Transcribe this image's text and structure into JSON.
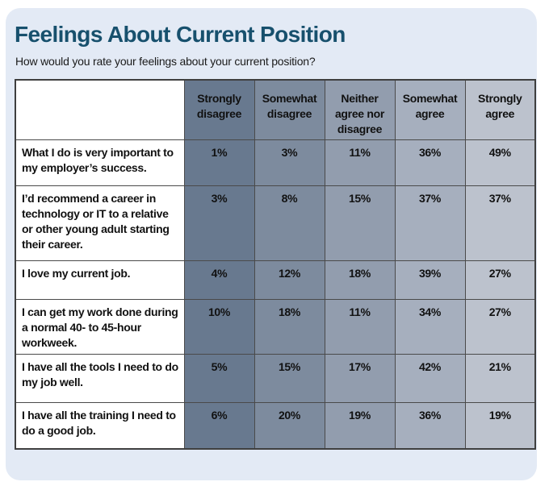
{
  "title": "Feelings About Current Position",
  "subtitle": "How would you rate your feelings about your current position?",
  "colors": {
    "card_background": "#e3eaf5",
    "title_text": "#17506d",
    "table_border": "#4a4a4a",
    "statement_background": "#ffffff",
    "cell_text": "#111111"
  },
  "chart_data": {
    "type": "table",
    "title": "Feelings About Current Position",
    "question": "How would you rate your feelings about your current position?",
    "columns": [
      "Strongly disagree",
      "Somewhat disagree",
      "Neither agree nor disagree",
      "Somewhat agree",
      "Strongly agree"
    ],
    "column_colors": [
      "#68798f",
      "#7d8b9e",
      "#929dae",
      "#a6afbe",
      "#bcc2cd"
    ],
    "rows": [
      {
        "statement": "What I do is very important to my employer’s success.",
        "values": [
          "1%",
          "3%",
          "11%",
          "36%",
          "49%"
        ]
      },
      {
        "statement": "I’d recommend a career in technology or IT to a relative or other young adult starting their career.",
        "values": [
          "3%",
          "8%",
          "15%",
          "37%",
          "37%"
        ]
      },
      {
        "statement": "I love my current job.",
        "values": [
          "4%",
          "12%",
          "18%",
          "39%",
          "27%"
        ]
      },
      {
        "statement": "I can get my work done during a normal 40- to 45-hour workweek.",
        "values": [
          "10%",
          "18%",
          "11%",
          "34%",
          "27%"
        ]
      },
      {
        "statement": "I have all the tools I need to do my job well.",
        "values": [
          "5%",
          "15%",
          "17%",
          "42%",
          "21%"
        ]
      },
      {
        "statement": "I have all the training I need to do a good job.",
        "values": [
          "6%",
          "20%",
          "19%",
          "36%",
          "19%"
        ]
      }
    ],
    "values_pct": [
      [
        1,
        3,
        11,
        36,
        49
      ],
      [
        3,
        8,
        15,
        37,
        37
      ],
      [
        4,
        12,
        18,
        39,
        27
      ],
      [
        10,
        18,
        11,
        34,
        27
      ],
      [
        5,
        15,
        17,
        42,
        21
      ],
      [
        6,
        20,
        19,
        36,
        19
      ]
    ]
  }
}
